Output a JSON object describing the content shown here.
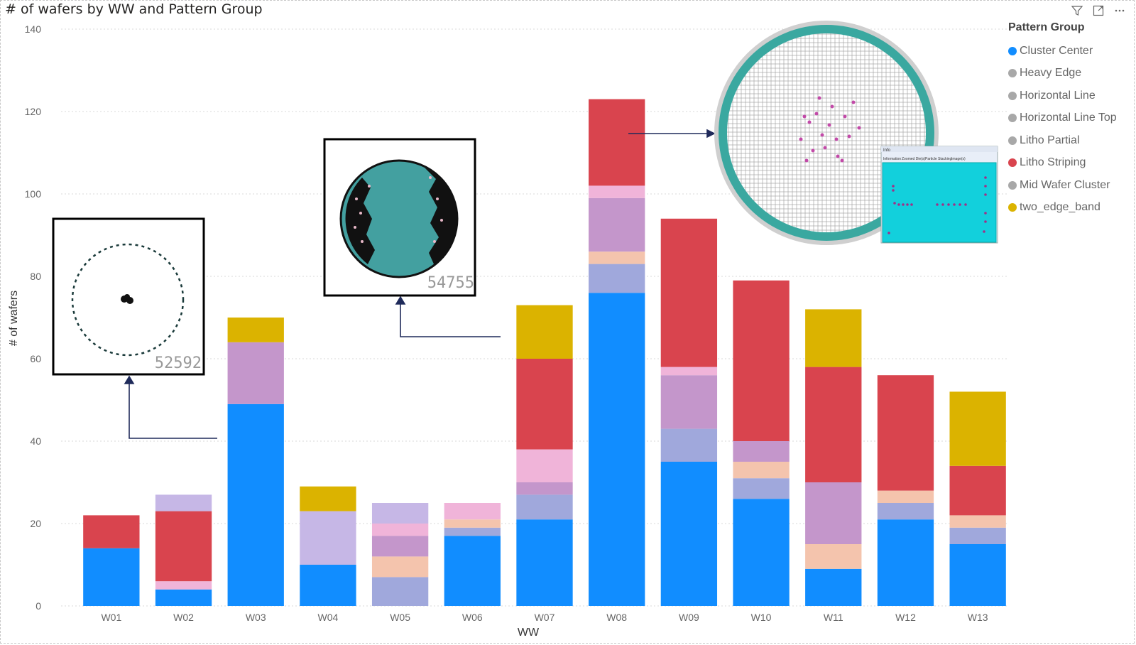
{
  "header": {
    "title": "# of wafers by WW and Pattern Group"
  },
  "toolbar": {
    "icons": [
      "filter-icon",
      "focus-mode-icon",
      "more-options-icon"
    ]
  },
  "legend": {
    "title": "Pattern Group",
    "items": [
      {
        "label": "Cluster Center",
        "color": "#118dff"
      },
      {
        "label": "Heavy Edge",
        "color": "#a8a8a8"
      },
      {
        "label": "Horizontal Line",
        "color": "#a8a8a8"
      },
      {
        "label": "Horizontal Line Top",
        "color": "#a8a8a8"
      },
      {
        "label": "Litho Partial",
        "color": "#a8a8a8"
      },
      {
        "label": "Litho Striping",
        "color": "#d9444e"
      },
      {
        "label": "Mid Wafer Cluster",
        "color": "#a8a8a8"
      },
      {
        "label": "two_edge_band",
        "color": "#dbb300"
      }
    ]
  },
  "chart_data": {
    "type": "bar",
    "stacked": true,
    "title": "# of wafers by WW and Pattern Group",
    "xlabel": "WW",
    "ylabel": "# of wafers",
    "ylim": [
      0,
      140
    ],
    "yticks": [
      0,
      20,
      40,
      60,
      80,
      100,
      120,
      140
    ],
    "categories": [
      "W01",
      "W02",
      "W03",
      "W04",
      "W05",
      "W06",
      "W07",
      "W08",
      "W09",
      "W10",
      "W11",
      "W12",
      "W13"
    ],
    "series": [
      {
        "name": "Cluster Center",
        "color": "#118dff",
        "values": [
          14,
          4,
          49,
          10,
          0,
          17,
          21,
          76,
          35,
          26,
          9,
          21,
          15
        ]
      },
      {
        "name": "Heavy Edge",
        "color": "#a0a8dc",
        "values": [
          0,
          0,
          0,
          0,
          7,
          2,
          6,
          7,
          8,
          5,
          0,
          4,
          4
        ]
      },
      {
        "name": "Horizontal Line",
        "color": "#f4c4ad",
        "values": [
          0,
          0,
          0,
          0,
          5,
          2,
          0,
          3,
          0,
          4,
          6,
          3,
          3
        ]
      },
      {
        "name": "Horizontal Line Top",
        "color": "#c496cb",
        "values": [
          0,
          0,
          15,
          0,
          5,
          0,
          3,
          13,
          13,
          5,
          15,
          0,
          0
        ]
      },
      {
        "name": "Litho Partial",
        "color": "#f0b4d9",
        "values": [
          0,
          2,
          0,
          0,
          3,
          4,
          8,
          3,
          2,
          0,
          0,
          0,
          0
        ]
      },
      {
        "name": "Litho Striping",
        "color": "#d9444e",
        "values": [
          8,
          17,
          0,
          0,
          0,
          0,
          22,
          21,
          36,
          39,
          28,
          28,
          12
        ]
      },
      {
        "name": "Mid Wafer Cluster",
        "color": "#c6b7e6",
        "values": [
          0,
          4,
          0,
          13,
          5,
          0,
          0,
          0,
          0,
          0,
          0,
          0,
          0
        ]
      },
      {
        "name": "two_edge_band",
        "color": "#dbb300",
        "values": [
          0,
          0,
          6,
          6,
          0,
          0,
          13,
          0,
          0,
          0,
          14,
          0,
          18
        ]
      }
    ],
    "grid": true,
    "legend_position": "right"
  },
  "annotations": [
    {
      "id": "52592",
      "label": "52592"
    },
    {
      "id": "54755",
      "label": "54755"
    }
  ],
  "wafer_map_panel": {
    "tabs": [
      "Information",
      "Zoomed Die(s)",
      "Particle Stacking",
      "Image(s)"
    ],
    "window_title": "Info"
  }
}
